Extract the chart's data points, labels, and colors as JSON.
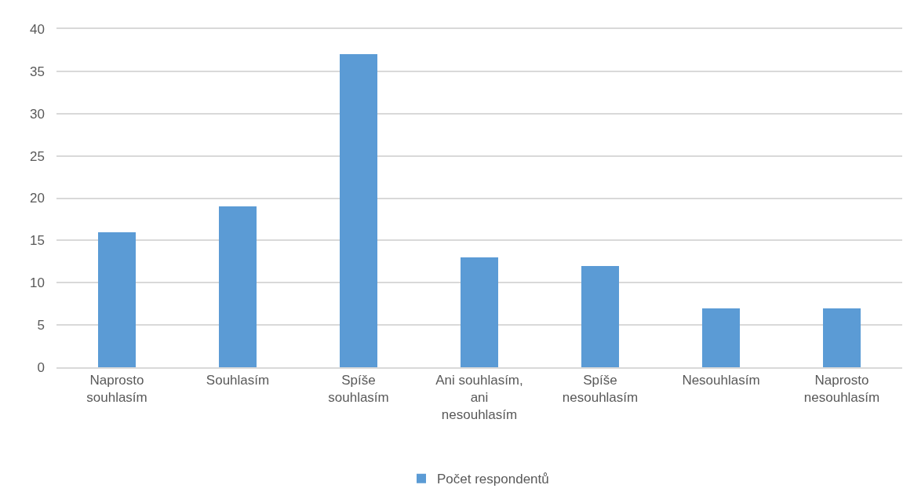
{
  "chart_data": {
    "type": "bar",
    "categories": [
      "Naprosto souhlasím",
      "Souhlasím",
      "Spíše souhlasím",
      "Ani souhlasím, ani nesouhlasím",
      "Spíše nesouhlasím",
      "Nesouhlasím",
      "Naprosto nesouhlasím"
    ],
    "series": [
      {
        "name": "Počet respondentů",
        "color": "#5b9bd5",
        "values": [
          16,
          19,
          37,
          13,
          12,
          7,
          7
        ]
      }
    ],
    "ylim": [
      0,
      40
    ],
    "yticks": [
      0,
      5,
      10,
      15,
      20,
      25,
      30,
      35,
      40
    ],
    "grid": "y",
    "legend": "bottom"
  }
}
